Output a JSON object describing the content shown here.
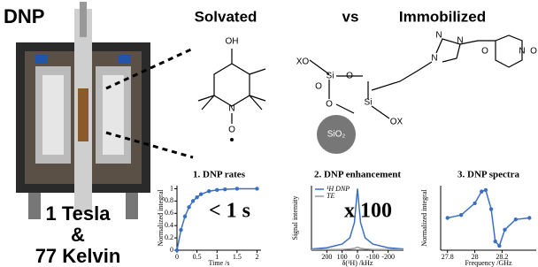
{
  "header": {
    "label": "DNP",
    "solvated": "Solvated",
    "versus": "vs",
    "immobilized": "Immobilized"
  },
  "conditions": [
    "1 Tesla",
    "&",
    "77 Kelvin"
  ],
  "molecules": {
    "tempol_atoms": [
      "OH",
      "N",
      "O"
    ],
    "immobilized_atoms": [
      "XO",
      "Si",
      "O",
      "O",
      "O",
      "Si",
      "OX",
      "SiO₂",
      "N",
      "N",
      "N",
      "O",
      "N",
      "O"
    ]
  },
  "panels": [
    {
      "type": "line",
      "title": "1. DNP rates",
      "annotation": "< 1 s",
      "x_label": "Time /s",
      "y_label": "Normalized integral",
      "xlim": [
        0,
        2.1
      ],
      "ylim": [
        0,
        1.05
      ],
      "xticks": [
        0,
        0.5,
        1,
        1.5,
        2
      ],
      "yticks": [
        0,
        0.2,
        0.4,
        0.6,
        0.8,
        1
      ],
      "x": [
        0,
        0.1,
        0.2,
        0.3,
        0.4,
        0.5,
        0.6,
        0.8,
        1.0,
        1.2,
        1.5,
        2.0
      ],
      "series": [
        {
          "color": "#3a6fc4",
          "markers": true,
          "values": [
            0,
            0.33,
            0.55,
            0.7,
            0.8,
            0.86,
            0.91,
            0.96,
            0.98,
            0.99,
            1,
            1
          ]
        }
      ]
    },
    {
      "type": "line",
      "title": "2. DNP enhancement",
      "annotation": "x 100",
      "x_label": "δ(¹H) /kHz",
      "y_label": "Signal intensity",
      "xlim": [
        300,
        -300
      ],
      "ylim": [
        0,
        1.05
      ],
      "xticks": [
        200,
        100,
        0,
        -100,
        -200
      ],
      "yticks": [],
      "x": [
        -300,
        -200,
        -100,
        -50,
        -20,
        0,
        20,
        50,
        100,
        200,
        300
      ],
      "series": [
        {
          "name": "¹H DNP",
          "color": "#3a6fc4",
          "markers": false,
          "values": [
            0.02,
            0.04,
            0.1,
            0.2,
            0.45,
            1,
            0.45,
            0.2,
            0.1,
            0.04,
            0.02
          ]
        },
        {
          "name": "TE",
          "color": "#999999",
          "markers": false,
          "values": [
            0.01,
            0.01,
            0.01,
            0.02,
            0.03,
            0.05,
            0.03,
            0.02,
            0.01,
            0.01,
            0.01
          ]
        }
      ]
    },
    {
      "type": "line",
      "title": "3. DNP spectra",
      "x_label": "Frequency /GHz",
      "y_label": "Normalized integral",
      "xlim": [
        27.75,
        28.45
      ],
      "ylim": [
        -1.1,
        1.1
      ],
      "xticks": [
        27.8,
        28,
        28.2
      ],
      "yticks": [],
      "x": [
        27.8,
        27.9,
        28.0,
        28.05,
        28.08,
        28.12,
        28.15,
        28.18,
        28.22,
        28.3,
        28.4
      ],
      "series": [
        {
          "color": "#3a6fc4",
          "markers": true,
          "values": [
            0,
            0.1,
            0.5,
            0.9,
            0.95,
            0.3,
            -0.8,
            -0.95,
            -0.4,
            -0.05,
            0
          ]
        }
      ]
    }
  ]
}
